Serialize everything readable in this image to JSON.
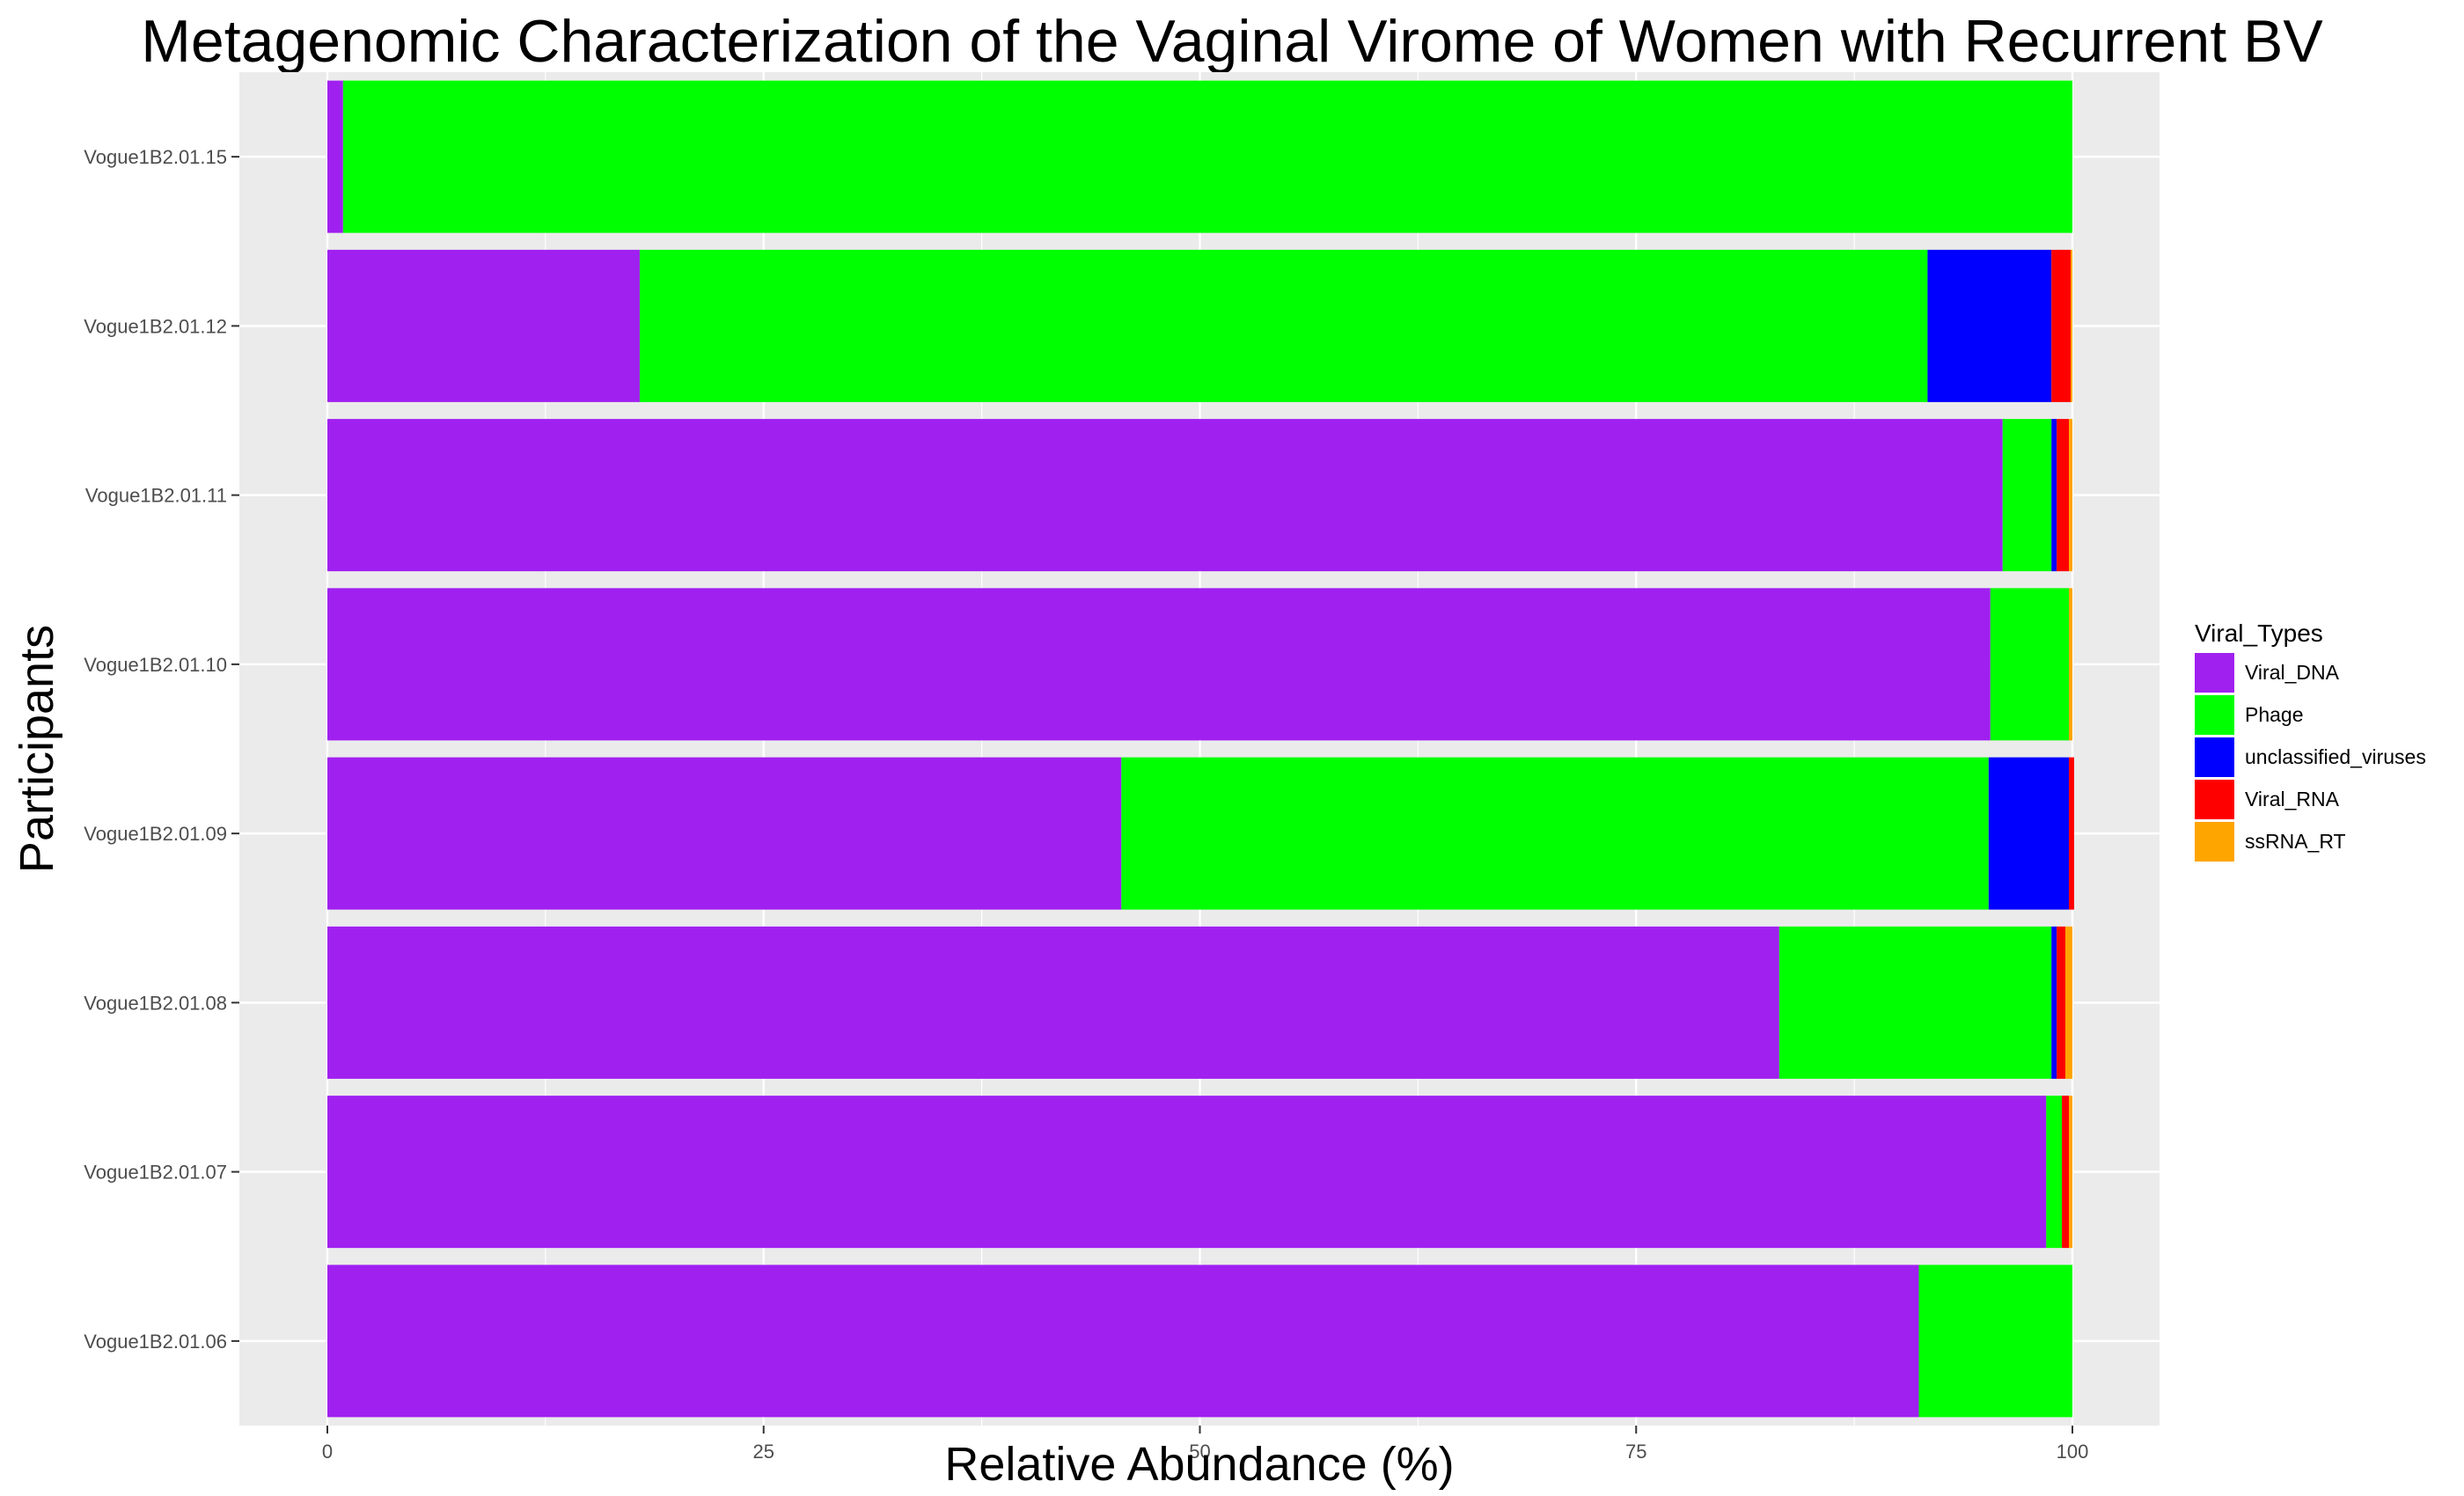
{
  "chart_data": {
    "type": "bar",
    "orientation": "horizontal",
    "stacked": true,
    "title": "Metagenomic Characterization of the Vaginal Virome of Women with Recurrent BV",
    "xlabel": "Relative Abundance (%)",
    "ylabel": "Participants",
    "xlim": [
      0,
      100
    ],
    "x_ticks": [
      "0",
      "25",
      "50",
      "75",
      "100"
    ],
    "grid": true,
    "legend_position": "right",
    "legend_title": "Viral_Types",
    "categories": [
      "Vogue1B2.01.15",
      "Vogue1B2.01.12",
      "Vogue1B2.01.11",
      "Vogue1B2.01.10",
      "Vogue1B2.01.09",
      "Vogue1B2.01.08",
      "Vogue1B2.01.07",
      "Vogue1B2.01.06"
    ],
    "series": [
      {
        "name": "Viral_DNA",
        "color": "#A020F0",
        "values": [
          0.9,
          17.9,
          96.0,
          95.3,
          45.5,
          83.2,
          98.5,
          91.2
        ]
      },
      {
        "name": "Phage",
        "color": "#00FF00",
        "values": [
          99.1,
          73.8,
          2.8,
          4.5,
          49.7,
          15.6,
          0.9,
          8.8
        ]
      },
      {
        "name": "unclassified_viruses",
        "color": "#0000FF",
        "values": [
          0.0,
          7.1,
          0.3,
          0.0,
          4.6,
          0.3,
          0.0,
          0.0
        ]
      },
      {
        "name": "Viral_RNA",
        "color": "#FF0000",
        "values": [
          0.0,
          1.1,
          0.7,
          0.0,
          0.3,
          0.5,
          0.4,
          0.0
        ]
      },
      {
        "name": "ssRNA_RT",
        "color": "#FFA500",
        "values": [
          0.0,
          0.1,
          0.2,
          0.2,
          0.0,
          0.4,
          0.2,
          0.0
        ]
      }
    ]
  }
}
